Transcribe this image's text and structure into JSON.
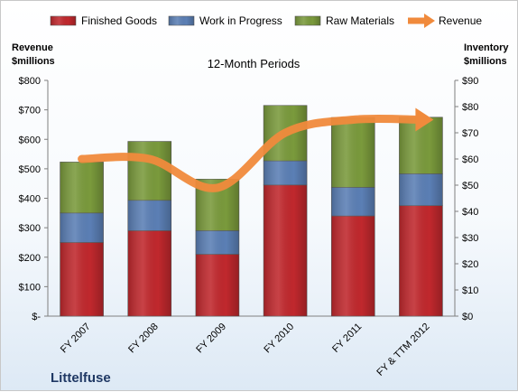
{
  "chart_data": {
    "type": "bar",
    "stacked": true,
    "title": "12-Month Periods",
    "company": "Littelfuse",
    "categories": [
      "FY 2007",
      "FY 2008",
      "FY 2009",
      "FY 2010",
      "FY 2011",
      "FY & TTM 2012"
    ],
    "series": [
      {
        "name": "Finished Goods",
        "color": "#c0282d",
        "axis": "left",
        "values": [
          250,
          290,
          210,
          445,
          340,
          375
        ]
      },
      {
        "name": "Work in Progress",
        "color": "#5b7fb5",
        "axis": "left",
        "values": [
          100,
          103,
          80,
          82,
          97,
          108
        ]
      },
      {
        "name": "Raw Materials",
        "color": "#7a9a3c",
        "axis": "left",
        "values": [
          173,
          200,
          175,
          188,
          237,
          192
        ]
      }
    ],
    "line_series": {
      "name": "Revenue",
      "color": "#f08a3c",
      "axis": "right",
      "values": [
        60,
        60,
        49,
        70,
        75,
        75
      ]
    },
    "left_axis": {
      "label_line1": "Revenue",
      "label_line2": "$millions",
      "min": 0,
      "max": 800,
      "step": 100,
      "tick_labels": [
        "$-",
        "$100",
        "$200",
        "$300",
        "$400",
        "$500",
        "$600",
        "$700",
        "$800"
      ]
    },
    "right_axis": {
      "label_line1": "Inventory",
      "label_line2": "$millions",
      "min": 0,
      "max": 90,
      "step": 10,
      "tick_labels": [
        "$0",
        "$10",
        "$20",
        "$30",
        "$40",
        "$50",
        "$60",
        "$70",
        "$80",
        "$90"
      ]
    },
    "legend": {
      "position": "top"
    },
    "grid": false
  }
}
